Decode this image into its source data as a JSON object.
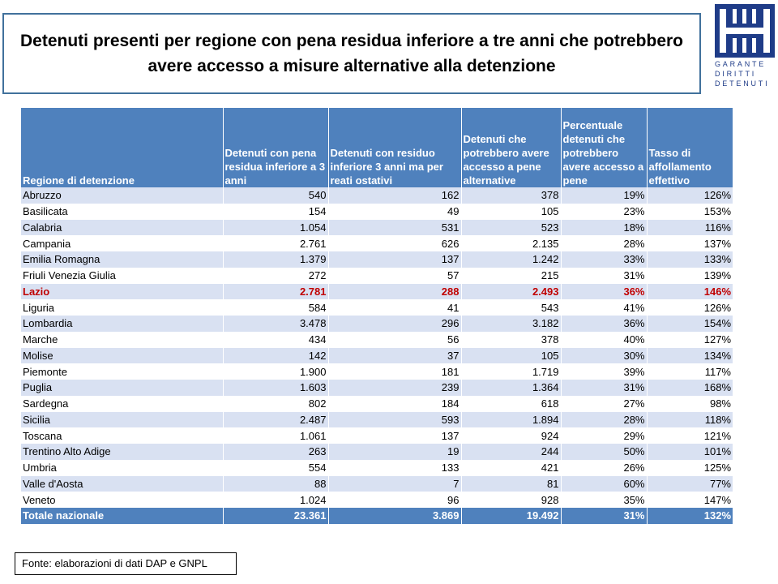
{
  "title": "Detenuti presenti per regione con pena residua inferiore a tre anni che potrebbero avere accesso a misure alternative alla detenzione",
  "logo": {
    "text_lines": [
      "GARANTE",
      "DIRITTI",
      "DETENUTI"
    ],
    "color": "#1f3c88"
  },
  "table": {
    "headers": [
      "Regione di detenzione",
      "Detenuti con pena residua inferiore a 3 anni",
      "Detenuti con residuo inferiore 3 anni ma per reati ostativi",
      "Detenuti che potrebbero avere accesso a pene alternative",
      "Percentuale detenuti che potrebbero avere accesso a pene",
      "Tasso di affollamento effettivo"
    ],
    "rows": [
      [
        "Abruzzo",
        "540",
        "162",
        "378",
        "19%",
        "126%"
      ],
      [
        "Basilicata",
        "154",
        "49",
        "105",
        "23%",
        "153%"
      ],
      [
        "Calabria",
        "1.054",
        "531",
        "523",
        "18%",
        "116%"
      ],
      [
        "Campania",
        "2.761",
        "626",
        "2.135",
        "28%",
        "137%"
      ],
      [
        "Emilia Romagna",
        "1.379",
        "137",
        "1.242",
        "33%",
        "133%"
      ],
      [
        "Friuli Venezia Giulia",
        "272",
        "57",
        "215",
        "31%",
        "139%"
      ],
      [
        "Lazio",
        "2.781",
        "288",
        "2.493",
        "36%",
        "146%"
      ],
      [
        "Liguria",
        "584",
        "41",
        "543",
        "41%",
        "126%"
      ],
      [
        "Lombardia",
        "3.478",
        "296",
        "3.182",
        "36%",
        "154%"
      ],
      [
        "Marche",
        "434",
        "56",
        "378",
        "40%",
        "127%"
      ],
      [
        "Molise",
        "142",
        "37",
        "105",
        "30%",
        "134%"
      ],
      [
        "Piemonte",
        "1.900",
        "181",
        "1.719",
        "39%",
        "117%"
      ],
      [
        "Puglia",
        "1.603",
        "239",
        "1.364",
        "31%",
        "168%"
      ],
      [
        "Sardegna",
        "802",
        "184",
        "618",
        "27%",
        "98%"
      ],
      [
        "Sicilia",
        "2.487",
        "593",
        "1.894",
        "28%",
        "118%"
      ],
      [
        "Toscana",
        "1.061",
        "137",
        "924",
        "29%",
        "121%"
      ],
      [
        "Trentino Alto Adige",
        "263",
        "19",
        "244",
        "50%",
        "101%"
      ],
      [
        "Umbria",
        "554",
        "133",
        "421",
        "26%",
        "125%"
      ],
      [
        "Valle d'Aosta",
        "88",
        "7",
        "81",
        "60%",
        "77%"
      ],
      [
        "Veneto",
        "1.024",
        "96",
        "928",
        "35%",
        "147%"
      ]
    ],
    "highlighted_row": "Lazio",
    "highlight_color": "#c00000",
    "total": [
      "Totale nazionale",
      "23.361",
      "3.869",
      "19.492",
      "31%",
      "132%"
    ],
    "header_color": "#4f81bd",
    "band_color": "#d9e1f2"
  },
  "source": "Fonte: elaborazioni di dati DAP e GNPL"
}
